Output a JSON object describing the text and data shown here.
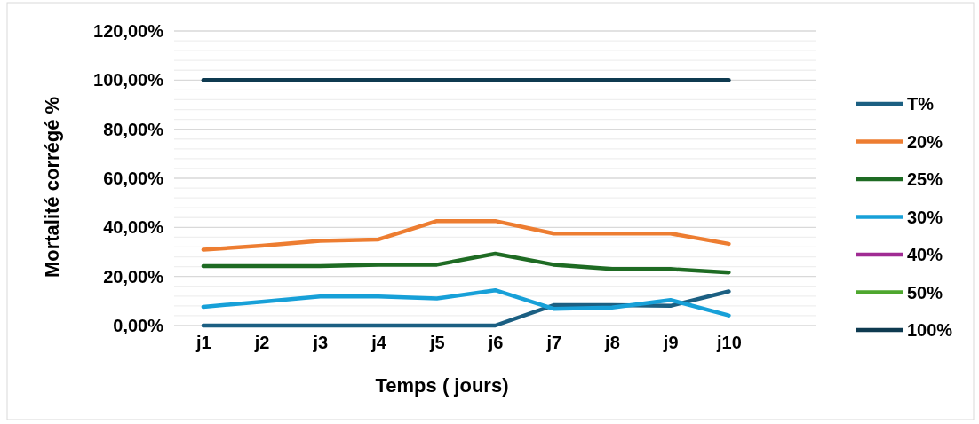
{
  "chart_data": {
    "type": "line",
    "xlabel": "Temps ( jours)",
    "ylabel": "Mortalité corrégé %",
    "categories": [
      "j1",
      "j2",
      "j3",
      "j4",
      "j5",
      "j6",
      "j7",
      "j8",
      "j9",
      "j10",
      null
    ],
    "ylim": [
      0,
      120
    ],
    "yticks": [
      {
        "value": 0,
        "label": "0,00%"
      },
      {
        "value": 4,
        "label": null
      },
      {
        "value": 8,
        "label": null
      },
      {
        "value": 12,
        "label": null
      },
      {
        "value": 16,
        "label": null
      },
      {
        "value": 20,
        "label": "20,00%"
      },
      {
        "value": 24,
        "label": null
      },
      {
        "value": 28,
        "label": null
      },
      {
        "value": 32,
        "label": null
      },
      {
        "value": 36,
        "label": null
      },
      {
        "value": 40,
        "label": "40,00%"
      },
      {
        "value": 44,
        "label": null
      },
      {
        "value": 48,
        "label": null
      },
      {
        "value": 52,
        "label": null
      },
      {
        "value": 56,
        "label": null
      },
      {
        "value": 60,
        "label": "60,00%"
      },
      {
        "value": 64,
        "label": null
      },
      {
        "value": 68,
        "label": null
      },
      {
        "value": 72,
        "label": null
      },
      {
        "value": 76,
        "label": null
      },
      {
        "value": 80,
        "label": "80,00%"
      },
      {
        "value": 84,
        "label": null
      },
      {
        "value": 88,
        "label": null
      },
      {
        "value": 92,
        "label": null
      },
      {
        "value": 96,
        "label": null
      },
      {
        "value": 100,
        "label": "100,00%"
      },
      {
        "value": 104,
        "label": null
      },
      {
        "value": 108,
        "label": null
      },
      {
        "value": 112,
        "label": null
      },
      {
        "value": 116,
        "label": null
      },
      {
        "value": 120,
        "label": "120,00%"
      }
    ],
    "grid": "y",
    "legend": "right",
    "marker": "none",
    "line_style": "solid",
    "series": [
      {
        "name": "T%",
        "color": "#1b5f82",
        "values": [
          0,
          0,
          0,
          0,
          0,
          0,
          8.3,
          8.3,
          8.0,
          13.9,
          null
        ]
      },
      {
        "name": "20%",
        "color": "#ed7d31",
        "values": [
          30.9,
          32.5,
          34.5,
          35.1,
          42.6,
          42.6,
          37.5,
          37.5,
          37.5,
          33.3,
          null
        ]
      },
      {
        "name": "25%",
        "color": "#1e6b23",
        "values": [
          24.2,
          24.2,
          24.2,
          24.8,
          24.8,
          29.3,
          24.8,
          23.0,
          23.0,
          21.6,
          null
        ]
      },
      {
        "name": "30%",
        "color": "#17a0d8",
        "values": [
          7.6,
          9.7,
          11.8,
          11.8,
          11.0,
          14.4,
          6.8,
          7.3,
          10.4,
          4.1,
          null
        ]
      },
      {
        "name": "40%",
        "color": "#a02b93",
        "values": [
          null,
          null,
          null,
          null,
          null,
          null,
          null,
          null,
          null,
          null,
          null
        ]
      },
      {
        "name": "50%",
        "color": "#4ea72e",
        "values": [
          null,
          null,
          null,
          null,
          null,
          null,
          null,
          null,
          null,
          null,
          null
        ]
      },
      {
        "name": "100%",
        "color": "#0e3a50",
        "values": [
          100,
          100,
          100,
          100,
          100,
          100,
          100,
          100,
          100,
          100,
          null
        ]
      }
    ]
  }
}
